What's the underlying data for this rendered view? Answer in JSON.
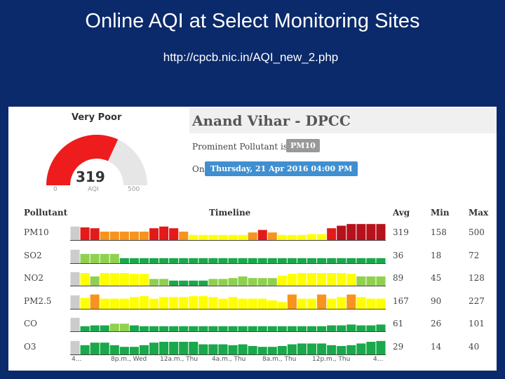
{
  "slide": {
    "title": "Online AQI at Select Monitoring Sites",
    "url": "http://cpcb.nic.in/AQI_new_2.php"
  },
  "gauge": {
    "category": "Very Poor",
    "value": 319,
    "min_label": "0",
    "unit_label": "AQI",
    "max_label": "500",
    "min": 0,
    "max": 500,
    "fill_color": "#ee1c1c",
    "track_color": "#e6e6e6"
  },
  "site": {
    "name": "Anand Vihar - DPCC",
    "prominent_label": "Prominent Pollutant is",
    "prominent_pollutant": "PM10",
    "on_label": "On",
    "datetime": "Thursday, 21 Apr 2016 04:00 PM"
  },
  "table": {
    "headers": {
      "pollutant": "Pollutant",
      "timeline": "Timeline",
      "avg": "Avg",
      "min": "Min",
      "max": "Max"
    },
    "colors": {
      "na": "#cccccc",
      "good": "#19a84a",
      "satisfactory": "#8fd14f",
      "moderate": "#ffff00",
      "poor": "#f7941d",
      "very_poor": "#e31a1a",
      "severe": "#b5121b"
    },
    "rows": [
      {
        "name": "PM10",
        "avg": "319",
        "min": "158",
        "max": "500",
        "bars": [
          [
            "na",
            0.8
          ],
          [
            "very_poor",
            0.75
          ],
          [
            "very_poor",
            0.7
          ],
          [
            "poor",
            0.5
          ],
          [
            "poor",
            0.5
          ],
          [
            "poor",
            0.5
          ],
          [
            "poor",
            0.5
          ],
          [
            "poor",
            0.5
          ],
          [
            "very_poor",
            0.7
          ],
          [
            "very_poor",
            0.8
          ],
          [
            "very_poor",
            0.7
          ],
          [
            "poor",
            0.5
          ],
          [
            "moderate",
            0.3
          ],
          [
            "moderate",
            0.3
          ],
          [
            "moderate",
            0.3
          ],
          [
            "moderate",
            0.3
          ],
          [
            "moderate",
            0.3
          ],
          [
            "moderate",
            0.3
          ],
          [
            "poor",
            0.45
          ],
          [
            "very_poor",
            0.6
          ],
          [
            "poor",
            0.45
          ],
          [
            "moderate",
            0.3
          ],
          [
            "moderate",
            0.3
          ],
          [
            "moderate",
            0.3
          ],
          [
            "moderate",
            0.35
          ],
          [
            "moderate",
            0.35
          ],
          [
            "very_poor",
            0.7
          ],
          [
            "severe",
            0.85
          ],
          [
            "severe",
            0.95
          ],
          [
            "severe",
            0.95
          ],
          [
            "severe",
            0.95
          ],
          [
            "severe",
            0.95
          ]
        ]
      },
      {
        "name": "SO2",
        "avg": "36",
        "min": "18",
        "max": "72",
        "bars": [
          [
            "na",
            0.8
          ],
          [
            "satisfactory",
            0.55
          ],
          [
            "satisfactory",
            0.55
          ],
          [
            "satisfactory",
            0.55
          ],
          [
            "satisfactory",
            0.55
          ],
          [
            "good",
            0.3
          ],
          [
            "good",
            0.3
          ],
          [
            "good",
            0.3
          ],
          [
            "good",
            0.3
          ],
          [
            "good",
            0.3
          ],
          [
            "good",
            0.3
          ],
          [
            "good",
            0.3
          ],
          [
            "good",
            0.3
          ],
          [
            "good",
            0.3
          ],
          [
            "good",
            0.3
          ],
          [
            "good",
            0.3
          ],
          [
            "good",
            0.3
          ],
          [
            "good",
            0.3
          ],
          [
            "good",
            0.3
          ],
          [
            "good",
            0.3
          ],
          [
            "good",
            0.3
          ],
          [
            "good",
            0.3
          ],
          [
            "good",
            0.3
          ],
          [
            "good",
            0.3
          ],
          [
            "good",
            0.3
          ],
          [
            "good",
            0.3
          ],
          [
            "good",
            0.3
          ],
          [
            "good",
            0.3
          ],
          [
            "good",
            0.3
          ],
          [
            "good",
            0.3
          ],
          [
            "good",
            0.3
          ],
          [
            "good",
            0.3
          ]
        ]
      },
      {
        "name": "NO2",
        "avg": "89",
        "min": "45",
        "max": "128",
        "bars": [
          [
            "na",
            0.8
          ],
          [
            "moderate",
            0.75
          ],
          [
            "satisfactory",
            0.55
          ],
          [
            "moderate",
            0.75
          ],
          [
            "moderate",
            0.75
          ],
          [
            "moderate",
            0.75
          ],
          [
            "moderate",
            0.7
          ],
          [
            "moderate",
            0.7
          ],
          [
            "satisfactory",
            0.4
          ],
          [
            "satisfactory",
            0.4
          ],
          [
            "good",
            0.3
          ],
          [
            "good",
            0.3
          ],
          [
            "good",
            0.3
          ],
          [
            "good",
            0.3
          ],
          [
            "satisfactory",
            0.4
          ],
          [
            "satisfactory",
            0.4
          ],
          [
            "satisfactory",
            0.45
          ],
          [
            "satisfactory",
            0.55
          ],
          [
            "satisfactory",
            0.45
          ],
          [
            "satisfactory",
            0.45
          ],
          [
            "satisfactory",
            0.45
          ],
          [
            "moderate",
            0.6
          ],
          [
            "moderate",
            0.7
          ],
          [
            "moderate",
            0.75
          ],
          [
            "moderate",
            0.75
          ],
          [
            "moderate",
            0.75
          ],
          [
            "moderate",
            0.75
          ],
          [
            "moderate",
            0.75
          ],
          [
            "moderate",
            0.7
          ],
          [
            "satisfactory",
            0.55
          ],
          [
            "satisfactory",
            0.55
          ],
          [
            "satisfactory",
            0.55
          ]
        ]
      },
      {
        "name": "PM2.5",
        "avg": "167",
        "min": "90",
        "max": "227",
        "bars": [
          [
            "na",
            0.8
          ],
          [
            "moderate",
            0.65
          ],
          [
            "poor",
            0.85
          ],
          [
            "moderate",
            0.6
          ],
          [
            "moderate",
            0.6
          ],
          [
            "moderate",
            0.6
          ],
          [
            "moderate",
            0.7
          ],
          [
            "moderate",
            0.75
          ],
          [
            "moderate",
            0.6
          ],
          [
            "moderate",
            0.7
          ],
          [
            "moderate",
            0.7
          ],
          [
            "moderate",
            0.7
          ],
          [
            "moderate",
            0.75
          ],
          [
            "moderate",
            0.75
          ],
          [
            "moderate",
            0.7
          ],
          [
            "moderate",
            0.6
          ],
          [
            "moderate",
            0.7
          ],
          [
            "moderate",
            0.6
          ],
          [
            "moderate",
            0.6
          ],
          [
            "moderate",
            0.6
          ],
          [
            "moderate",
            0.5
          ],
          [
            "moderate",
            0.4
          ],
          [
            "poor",
            0.85
          ],
          [
            "moderate",
            0.6
          ],
          [
            "moderate",
            0.6
          ],
          [
            "poor",
            0.85
          ],
          [
            "moderate",
            0.6
          ],
          [
            "moderate",
            0.7
          ],
          [
            "poor",
            0.85
          ],
          [
            "moderate",
            0.7
          ],
          [
            "moderate",
            0.6
          ],
          [
            "moderate",
            0.6
          ]
        ]
      },
      {
        "name": "CO",
        "avg": "61",
        "min": "26",
        "max": "101",
        "bars": [
          [
            "na",
            0.8
          ],
          [
            "good",
            0.3
          ],
          [
            "good",
            0.35
          ],
          [
            "good",
            0.35
          ],
          [
            "satisfactory",
            0.45
          ],
          [
            "satisfactory",
            0.45
          ],
          [
            "good",
            0.35
          ],
          [
            "good",
            0.3
          ],
          [
            "good",
            0.3
          ],
          [
            "good",
            0.3
          ],
          [
            "good",
            0.3
          ],
          [
            "good",
            0.3
          ],
          [
            "good",
            0.3
          ],
          [
            "good",
            0.3
          ],
          [
            "good",
            0.3
          ],
          [
            "good",
            0.3
          ],
          [
            "good",
            0.3
          ],
          [
            "good",
            0.3
          ],
          [
            "good",
            0.3
          ],
          [
            "good",
            0.3
          ],
          [
            "good",
            0.3
          ],
          [
            "good",
            0.3
          ],
          [
            "good",
            0.3
          ],
          [
            "good",
            0.3
          ],
          [
            "good",
            0.3
          ],
          [
            "good",
            0.3
          ],
          [
            "good",
            0.35
          ],
          [
            "good",
            0.35
          ],
          [
            "good",
            0.4
          ],
          [
            "good",
            0.35
          ],
          [
            "good",
            0.35
          ],
          [
            "good",
            0.4
          ]
        ]
      },
      {
        "name": "O3",
        "avg": "29",
        "min": "14",
        "max": "40",
        "bars": [
          [
            "na",
            0.8
          ],
          [
            "good",
            0.55
          ],
          [
            "good",
            0.7
          ],
          [
            "good",
            0.7
          ],
          [
            "good",
            0.55
          ],
          [
            "good",
            0.45
          ],
          [
            "good",
            0.45
          ],
          [
            "good",
            0.55
          ],
          [
            "good",
            0.7
          ],
          [
            "good",
            0.75
          ],
          [
            "good",
            0.75
          ],
          [
            "good",
            0.75
          ],
          [
            "good",
            0.75
          ],
          [
            "good",
            0.6
          ],
          [
            "good",
            0.6
          ],
          [
            "good",
            0.6
          ],
          [
            "good",
            0.55
          ],
          [
            "good",
            0.6
          ],
          [
            "good",
            0.5
          ],
          [
            "good",
            0.45
          ],
          [
            "good",
            0.45
          ],
          [
            "good",
            0.5
          ],
          [
            "good",
            0.6
          ],
          [
            "good",
            0.65
          ],
          [
            "good",
            0.65
          ],
          [
            "good",
            0.65
          ],
          [
            "good",
            0.55
          ],
          [
            "good",
            0.5
          ],
          [
            "good",
            0.55
          ],
          [
            "good",
            0.65
          ],
          [
            "good",
            0.75
          ],
          [
            "good",
            0.8
          ]
        ]
      }
    ],
    "ticks": [
      "4...",
      "8p.m., Wed",
      "12a.m., Thu",
      "4a.m., Thu",
      "8a.m., Thu",
      "12p.m., Thu",
      "4..."
    ]
  }
}
